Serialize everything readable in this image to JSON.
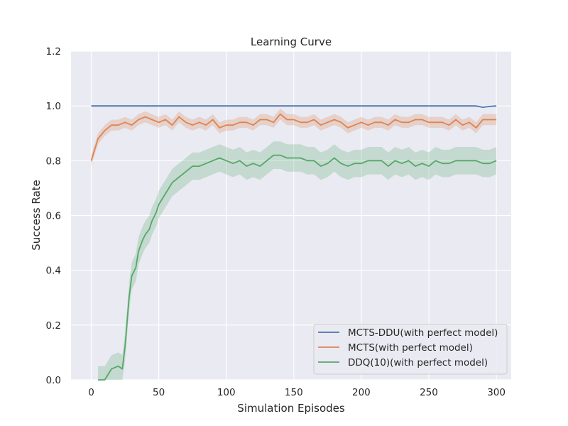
{
  "chart_data": {
    "type": "line",
    "title": "Learning Curve",
    "xlabel": "Simulation Episodes",
    "ylabel": "Success Rate",
    "xlim": [
      -15,
      311
    ],
    "ylim": [
      0.0,
      1.2
    ],
    "xticks": [
      0,
      50,
      100,
      150,
      200,
      250,
      300
    ],
    "xtick_labels": [
      "0",
      "50",
      "100",
      "150",
      "200",
      "250",
      "300"
    ],
    "yticks": [
      0.0,
      0.2,
      0.4,
      0.6,
      0.8,
      1.0,
      1.2
    ],
    "ytick_labels": [
      "0.0",
      "0.2",
      "0.4",
      "0.6",
      "0.8",
      "1.0",
      "1.2"
    ],
    "grid": true,
    "legend_position": "lower-right",
    "series": [
      {
        "name": "MCTS-DDU(with perfect model)",
        "color": "#4c72b0",
        "x": [
          0,
          100,
          200,
          285,
          290,
          295,
          300
        ],
        "y": [
          1.0,
          1.0,
          1.0,
          1.0,
          0.995,
          0.998,
          1.0
        ],
        "band_width": 0.0
      },
      {
        "name": "MCTS(with perfect model)",
        "color": "#dd8452",
        "x": [
          0,
          5,
          10,
          15,
          20,
          25,
          30,
          35,
          40,
          45,
          50,
          55,
          60,
          65,
          70,
          75,
          80,
          85,
          90,
          95,
          100,
          105,
          110,
          115,
          120,
          125,
          130,
          135,
          140,
          145,
          150,
          155,
          160,
          165,
          170,
          175,
          180,
          185,
          190,
          195,
          200,
          205,
          210,
          215,
          220,
          225,
          230,
          235,
          240,
          245,
          250,
          255,
          260,
          265,
          270,
          275,
          280,
          285,
          290,
          295,
          300
        ],
        "y": [
          0.8,
          0.88,
          0.91,
          0.93,
          0.93,
          0.94,
          0.93,
          0.95,
          0.96,
          0.95,
          0.94,
          0.95,
          0.93,
          0.96,
          0.94,
          0.93,
          0.94,
          0.93,
          0.95,
          0.92,
          0.93,
          0.93,
          0.94,
          0.94,
          0.93,
          0.95,
          0.95,
          0.94,
          0.97,
          0.95,
          0.95,
          0.94,
          0.94,
          0.95,
          0.93,
          0.94,
          0.95,
          0.94,
          0.92,
          0.93,
          0.94,
          0.93,
          0.94,
          0.94,
          0.93,
          0.95,
          0.94,
          0.94,
          0.95,
          0.95,
          0.94,
          0.94,
          0.94,
          0.93,
          0.95,
          0.93,
          0.94,
          0.92,
          0.95,
          0.95,
          0.95
        ],
        "band_width": 0.02
      },
      {
        "name": "DDQ(10)(with perfect model)",
        "color": "#55a868",
        "x": [
          5,
          10,
          15,
          20,
          23,
          25,
          28,
          30,
          33,
          35,
          38,
          40,
          43,
          45,
          48,
          50,
          55,
          60,
          65,
          70,
          75,
          80,
          85,
          90,
          95,
          100,
          105,
          110,
          115,
          120,
          125,
          130,
          135,
          140,
          145,
          150,
          155,
          160,
          165,
          170,
          175,
          180,
          185,
          190,
          195,
          200,
          205,
          210,
          215,
          220,
          225,
          230,
          235,
          240,
          245,
          250,
          255,
          260,
          265,
          270,
          275,
          280,
          285,
          290,
          295,
          300
        ],
        "y": [
          0.0,
          0.0,
          0.04,
          0.05,
          0.04,
          0.12,
          0.3,
          0.38,
          0.41,
          0.47,
          0.51,
          0.53,
          0.55,
          0.58,
          0.61,
          0.64,
          0.68,
          0.72,
          0.74,
          0.76,
          0.78,
          0.78,
          0.79,
          0.8,
          0.81,
          0.8,
          0.79,
          0.8,
          0.78,
          0.79,
          0.78,
          0.8,
          0.82,
          0.82,
          0.81,
          0.81,
          0.81,
          0.8,
          0.8,
          0.78,
          0.79,
          0.81,
          0.79,
          0.78,
          0.79,
          0.79,
          0.8,
          0.8,
          0.8,
          0.78,
          0.8,
          0.79,
          0.8,
          0.78,
          0.79,
          0.78,
          0.8,
          0.79,
          0.79,
          0.8,
          0.8,
          0.8,
          0.8,
          0.79,
          0.79,
          0.8
        ],
        "band_width": 0.05
      }
    ]
  }
}
